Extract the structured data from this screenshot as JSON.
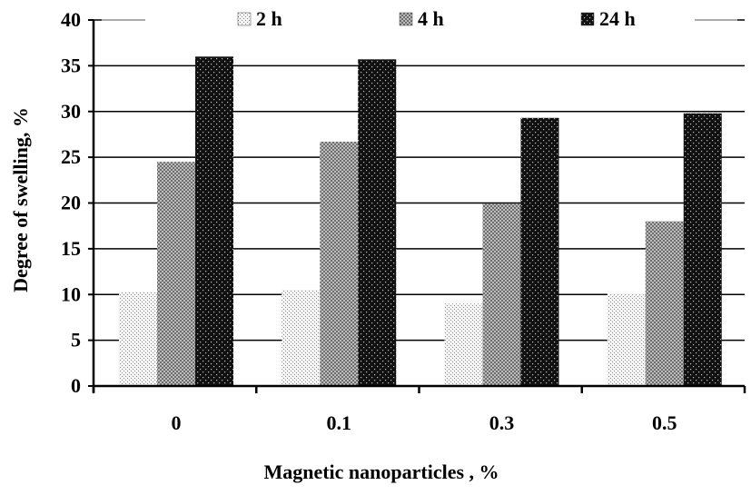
{
  "chart_data": {
    "type": "bar",
    "categories": [
      "0",
      "0.1",
      "0.3",
      "0.5"
    ],
    "series": [
      {
        "name": "2 h",
        "values": [
          10.3,
          10.5,
          9.0,
          10.1
        ],
        "pattern": "fine-dots"
      },
      {
        "name": "4 h",
        "values": [
          24.5,
          26.7,
          19.9,
          18.0
        ],
        "pattern": "checker"
      },
      {
        "name": "24 h",
        "values": [
          36.0,
          35.7,
          29.3,
          29.8
        ],
        "pattern": "dark-dots"
      }
    ],
    "title": "",
    "xlabel": "Magnetic nanoparticles , %",
    "ylabel": "Degree of swelling, %",
    "ylim": [
      0,
      40
    ],
    "yticks": [
      "0",
      "5",
      "10",
      "15",
      "20",
      "25",
      "30",
      "35",
      "40"
    ],
    "grid": true,
    "legend": "top"
  }
}
